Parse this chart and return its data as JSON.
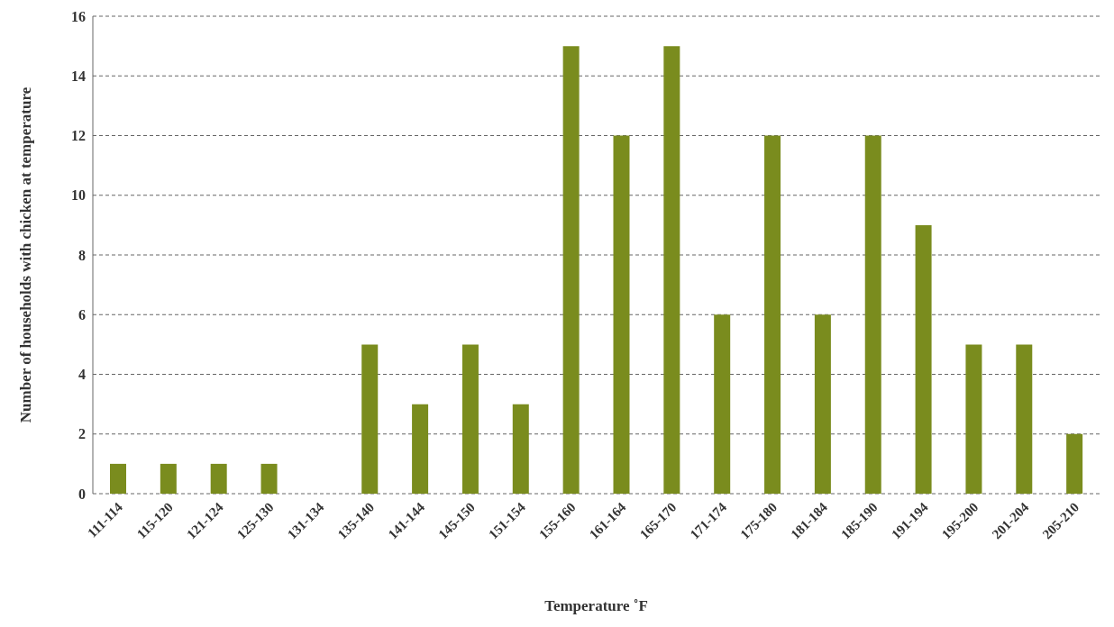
{
  "chart_data": {
    "type": "bar",
    "xlabel": "Temperature ˚F",
    "ylabel": "Number of households with chicken at temperature",
    "categories": [
      "111-114",
      "115-120",
      "121-124",
      "125-130",
      "131-134",
      "135-140",
      "141-144",
      "145-150",
      "151-154",
      "155-160",
      "161-164",
      "165-170",
      "171-174",
      "175-180",
      "181-184",
      "185-190",
      "191-194",
      "195-200",
      "201-204",
      "205-210"
    ],
    "values": [
      1,
      1,
      1,
      1,
      0,
      5,
      3,
      5,
      3,
      15,
      12,
      15,
      6,
      12,
      6,
      12,
      9,
      5,
      5,
      2
    ],
    "color": "#7a8c1e",
    "ylim": [
      0,
      16
    ],
    "yticks": [
      0,
      2,
      4,
      6,
      8,
      10,
      12,
      14,
      16
    ],
    "grid": "y"
  }
}
